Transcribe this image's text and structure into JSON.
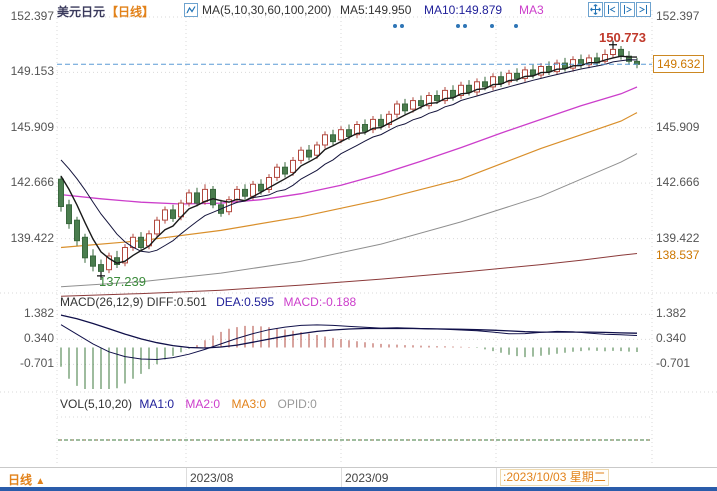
{
  "header": {
    "symbol": "美元日元",
    "period_tag": "【日线】",
    "ma_settings": "MA(5,10,30,60,100,200)",
    "ma5_label": "MA5:149.950",
    "ma10_label": "MA10:149.879",
    "ma30_label": "MA3"
  },
  "toolbar": {
    "icons": [
      "pan-tool",
      "compress-timeline",
      "expand-timeline",
      "shift-right"
    ]
  },
  "markers": {
    "high_label": "150.773",
    "low_label": "137.239",
    "price_tag": "149.632",
    "low_level_tag": "138.537"
  },
  "macd_header": {
    "title": "MACD(26,12,9)",
    "diff": "DIFF:0.501",
    "dea": "DEA:0.595",
    "macd": "MACD:-0.188"
  },
  "vol_header": {
    "title": "VOL(5,10,20)",
    "ma1": "MA1:0",
    "ma2": "MA2:0",
    "ma3": "MA3:0",
    "opid": "OPID:0"
  },
  "bottom": {
    "tab_label": "日线",
    "tab_arrow": "▲",
    "months": [
      "2023/08",
      "2023/09"
    ],
    "current_date": ":2023/10/03 星期二"
  },
  "chart_data": {
    "type": "candlestick",
    "title": "美元日元 日线 (USD/JPY daily)",
    "price_axis_ticks": [
      152.397,
      149.153,
      145.909,
      142.666,
      139.422
    ],
    "last_price": 149.632,
    "high_marker": {
      "index": 69,
      "price": 150.773
    },
    "low_marker": {
      "index": 5,
      "price": 137.239
    },
    "low_level": 138.537,
    "candles_ohlc_note": "each candle = [open, high, low, close]",
    "candles": [
      [
        142.9,
        143.1,
        141.0,
        141.3
      ],
      [
        141.4,
        141.7,
        140.0,
        140.3
      ],
      [
        140.5,
        140.7,
        139.0,
        139.3
      ],
      [
        139.5,
        139.7,
        138.0,
        138.3
      ],
      [
        138.4,
        138.8,
        137.5,
        137.8
      ],
      [
        137.9,
        138.2,
        137.239,
        137.5
      ],
      [
        137.6,
        138.6,
        137.4,
        138.4
      ],
      [
        138.3,
        138.7,
        137.7,
        137.9
      ],
      [
        138.0,
        139.1,
        137.8,
        138.9
      ],
      [
        138.9,
        139.7,
        138.7,
        139.5
      ],
      [
        139.5,
        139.8,
        138.7,
        138.9
      ],
      [
        139.0,
        139.9,
        138.8,
        139.7
      ],
      [
        139.7,
        140.7,
        139.5,
        140.5
      ],
      [
        140.5,
        141.3,
        140.3,
        141.1
      ],
      [
        141.1,
        141.4,
        140.4,
        140.6
      ],
      [
        140.7,
        141.7,
        140.5,
        141.5
      ],
      [
        141.5,
        142.3,
        141.3,
        142.1
      ],
      [
        142.1,
        142.4,
        141.3,
        141.5
      ],
      [
        141.6,
        142.6,
        141.4,
        142.3
      ],
      [
        142.3,
        142.5,
        141.2,
        141.4
      ],
      [
        141.4,
        141.7,
        140.7,
        140.9
      ],
      [
        141.0,
        141.9,
        140.8,
        141.7
      ],
      [
        141.7,
        142.5,
        141.5,
        142.3
      ],
      [
        142.3,
        142.6,
        141.7,
        141.9
      ],
      [
        141.9,
        142.8,
        141.7,
        142.6
      ],
      [
        142.6,
        142.9,
        142.0,
        142.2
      ],
      [
        142.3,
        143.2,
        142.1,
        143.0
      ],
      [
        143.0,
        143.8,
        142.8,
        143.6
      ],
      [
        143.6,
        143.9,
        143.0,
        143.2
      ],
      [
        143.3,
        144.2,
        143.1,
        144.0
      ],
      [
        144.0,
        144.8,
        143.8,
        144.6
      ],
      [
        144.6,
        144.9,
        144.0,
        144.2
      ],
      [
        144.3,
        145.1,
        144.1,
        144.9
      ],
      [
        144.9,
        145.7,
        144.7,
        145.5
      ],
      [
        145.5,
        145.8,
        144.9,
        145.1
      ],
      [
        145.2,
        146.0,
        145.0,
        145.8
      ],
      [
        145.8,
        146.1,
        145.2,
        145.4
      ],
      [
        145.5,
        146.3,
        145.3,
        146.1
      ],
      [
        146.1,
        146.4,
        145.5,
        145.7
      ],
      [
        145.8,
        146.6,
        145.6,
        146.4
      ],
      [
        146.4,
        146.7,
        145.8,
        146.0
      ],
      [
        146.1,
        146.9,
        145.9,
        146.7
      ],
      [
        146.7,
        147.5,
        146.5,
        147.3
      ],
      [
        147.3,
        147.6,
        146.7,
        146.9
      ],
      [
        147.0,
        147.7,
        146.8,
        147.5
      ],
      [
        147.5,
        147.8,
        147.0,
        147.2
      ],
      [
        147.2,
        148.0,
        147.0,
        147.8
      ],
      [
        147.8,
        148.1,
        147.3,
        147.5
      ],
      [
        147.5,
        148.3,
        147.3,
        148.1
      ],
      [
        148.1,
        148.4,
        147.5,
        147.7
      ],
      [
        147.8,
        148.6,
        147.6,
        148.4
      ],
      [
        148.4,
        148.7,
        147.8,
        148.0
      ],
      [
        148.0,
        148.8,
        147.8,
        148.6
      ],
      [
        148.6,
        148.9,
        148.1,
        148.3
      ],
      [
        148.3,
        149.1,
        148.1,
        148.9
      ],
      [
        148.9,
        149.2,
        148.3,
        148.5
      ],
      [
        148.6,
        149.3,
        148.4,
        149.1
      ],
      [
        149.1,
        149.4,
        148.6,
        148.8
      ],
      [
        148.8,
        149.5,
        148.6,
        149.3
      ],
      [
        149.3,
        149.6,
        148.8,
        149.0
      ],
      [
        149.0,
        149.7,
        148.8,
        149.5
      ],
      [
        149.5,
        149.8,
        149.0,
        149.2
      ],
      [
        149.2,
        149.9,
        149.0,
        149.7
      ],
      [
        149.7,
        150.0,
        149.2,
        149.4
      ],
      [
        149.4,
        150.1,
        149.2,
        149.9
      ],
      [
        149.9,
        150.2,
        149.4,
        149.6
      ],
      [
        149.6,
        150.2,
        149.4,
        150.0
      ],
      [
        150.0,
        150.3,
        149.5,
        149.7
      ],
      [
        149.8,
        150.5,
        149.6,
        150.2
      ],
      [
        150.2,
        150.773,
        150.0,
        150.5
      ],
      [
        150.5,
        150.7,
        149.9,
        150.1
      ],
      [
        150.1,
        150.4,
        149.6,
        149.8
      ],
      [
        149.8,
        150.0,
        149.4,
        149.632
      ]
    ],
    "ma_seed_closes": [
      145.5,
      145.2,
      144.8,
      144.9,
      144.5,
      144.2,
      143.9,
      143.4,
      142.6
    ],
    "overlays": {
      "ma30": [
        [
          0,
          142.0
        ],
        [
          5,
          141.75
        ],
        [
          10,
          141.55
        ],
        [
          15,
          141.45
        ],
        [
          20,
          141.5
        ],
        [
          25,
          141.7
        ],
        [
          30,
          142.05
        ],
        [
          35,
          142.55
        ],
        [
          40,
          143.2
        ],
        [
          45,
          143.95
        ],
        [
          50,
          144.75
        ],
        [
          55,
          145.6
        ],
        [
          60,
          146.4
        ],
        [
          65,
          147.2
        ],
        [
          70,
          147.9
        ],
        [
          72,
          148.3
        ]
      ],
      "ma60": [
        [
          0,
          138.9
        ],
        [
          10,
          139.3
        ],
        [
          20,
          139.9
        ],
        [
          30,
          140.7
        ],
        [
          40,
          141.7
        ],
        [
          50,
          142.9
        ],
        [
          55,
          143.8
        ],
        [
          60,
          144.7
        ],
        [
          65,
          145.5
        ],
        [
          70,
          146.3
        ],
        [
          72,
          146.8
        ]
      ],
      "ma100": [
        [
          0,
          136.6
        ],
        [
          10,
          136.9
        ],
        [
          20,
          137.4
        ],
        [
          30,
          138.1
        ],
        [
          40,
          139.1
        ],
        [
          50,
          140.4
        ],
        [
          60,
          141.9
        ],
        [
          65,
          142.9
        ],
        [
          70,
          143.9
        ],
        [
          72,
          144.4
        ]
      ],
      "ma200": [
        [
          0,
          136.05
        ],
        [
          10,
          136.2
        ],
        [
          20,
          136.4
        ],
        [
          30,
          136.7
        ],
        [
          40,
          137.05
        ],
        [
          50,
          137.45
        ],
        [
          60,
          137.9
        ],
        [
          65,
          138.15
        ],
        [
          70,
          138.45
        ],
        [
          72,
          138.55
        ]
      ]
    },
    "macd": {
      "params": "26,12,9",
      "ticks": [
        1.382,
        0.34,
        -0.701
      ],
      "diff": [
        [
          0,
          0.95
        ],
        [
          2,
          0.55
        ],
        [
          4,
          0.15
        ],
        [
          6,
          -0.18
        ],
        [
          8,
          -0.38
        ],
        [
          10,
          -0.48
        ],
        [
          12,
          -0.5
        ],
        [
          14,
          -0.42
        ],
        [
          16,
          -0.28
        ],
        [
          18,
          -0.08
        ],
        [
          20,
          0.15
        ],
        [
          22,
          0.38
        ],
        [
          24,
          0.58
        ],
        [
          26,
          0.74
        ],
        [
          28,
          0.85
        ],
        [
          30,
          0.92
        ],
        [
          32,
          0.94
        ],
        [
          34,
          0.92
        ],
        [
          36,
          0.88
        ],
        [
          38,
          0.84
        ],
        [
          40,
          0.81
        ],
        [
          42,
          0.82
        ],
        [
          44,
          0.8
        ],
        [
          46,
          0.78
        ],
        [
          48,
          0.76
        ],
        [
          50,
          0.73
        ],
        [
          52,
          0.7
        ],
        [
          54,
          0.64
        ],
        [
          56,
          0.57
        ],
        [
          58,
          0.58
        ],
        [
          60,
          0.63
        ],
        [
          62,
          0.67
        ],
        [
          64,
          0.66
        ],
        [
          66,
          0.6
        ],
        [
          68,
          0.55
        ],
        [
          70,
          0.53
        ],
        [
          72,
          0.501
        ]
      ],
      "dea": [
        [
          0,
          1.35
        ],
        [
          2,
          1.2
        ],
        [
          4,
          1.0
        ],
        [
          6,
          0.78
        ],
        [
          8,
          0.56
        ],
        [
          10,
          0.36
        ],
        [
          12,
          0.2
        ],
        [
          14,
          0.08
        ],
        [
          16,
          0.0
        ],
        [
          18,
          -0.02
        ],
        [
          20,
          0.02
        ],
        [
          22,
          0.1
        ],
        [
          24,
          0.22
        ],
        [
          26,
          0.35
        ],
        [
          28,
          0.47
        ],
        [
          30,
          0.58
        ],
        [
          32,
          0.67
        ],
        [
          34,
          0.73
        ],
        [
          36,
          0.77
        ],
        [
          38,
          0.79
        ],
        [
          40,
          0.79
        ],
        [
          42,
          0.79
        ],
        [
          44,
          0.79
        ],
        [
          46,
          0.78
        ],
        [
          48,
          0.77
        ],
        [
          50,
          0.76
        ],
        [
          52,
          0.74
        ],
        [
          54,
          0.72
        ],
        [
          56,
          0.69
        ],
        [
          58,
          0.66
        ],
        [
          60,
          0.64
        ],
        [
          62,
          0.64
        ],
        [
          64,
          0.64
        ],
        [
          66,
          0.64
        ],
        [
          68,
          0.63
        ],
        [
          70,
          0.61
        ],
        [
          72,
          0.595
        ]
      ],
      "hist": [
        -0.8,
        -1.3,
        -1.6,
        -1.8,
        -1.9,
        -1.9,
        -1.8,
        -1.7,
        -1.5,
        -1.3,
        -1.1,
        -0.9,
        -0.7,
        -0.5,
        -0.35,
        -0.2,
        -0.05,
        0.1,
        0.3,
        0.5,
        0.65,
        0.78,
        0.85,
        0.9,
        0.9,
        0.88,
        0.84,
        0.8,
        0.75,
        0.7,
        0.64,
        0.58,
        0.52,
        0.46,
        0.4,
        0.35,
        0.3,
        0.26,
        0.22,
        0.18,
        0.15,
        0.13,
        0.12,
        0.1,
        0.09,
        0.08,
        0.07,
        0.06,
        0.05,
        0.04,
        0.03,
        0.02,
        -0.02,
        -0.08,
        -0.15,
        -0.22,
        -0.3,
        -0.36,
        -0.4,
        -0.38,
        -0.34,
        -0.3,
        -0.26,
        -0.22,
        -0.18,
        -0.15,
        -0.12,
        -0.14,
        -0.16,
        -0.14,
        -0.15,
        -0.17,
        -0.188
      ]
    },
    "volume": {
      "all_zero": true
    },
    "month_ticks": [
      {
        "index": 16,
        "label": "2023/08"
      },
      {
        "index": 35,
        "label": "2023/09"
      }
    ],
    "colors": {
      "bull": "#b2493f",
      "bear_fill": "#4a7d4e",
      "bear_stroke": "#3a683e",
      "ma5": "#1a1a1a",
      "ma10": "#14143c",
      "ma30": "#cc3ecb",
      "ma60": "#d98f2b",
      "ma100": "#8f8f8f",
      "ma200": "#8b3a3a",
      "price_line": "#5b9bd5",
      "grid": "#d9d9d9",
      "macd_line": "#10104a",
      "hist_pos": "#b2493f",
      "hist_neg": "#3c7a3c",
      "accent_orange": "#e2821a",
      "accent_blue": "#2273b5"
    }
  }
}
